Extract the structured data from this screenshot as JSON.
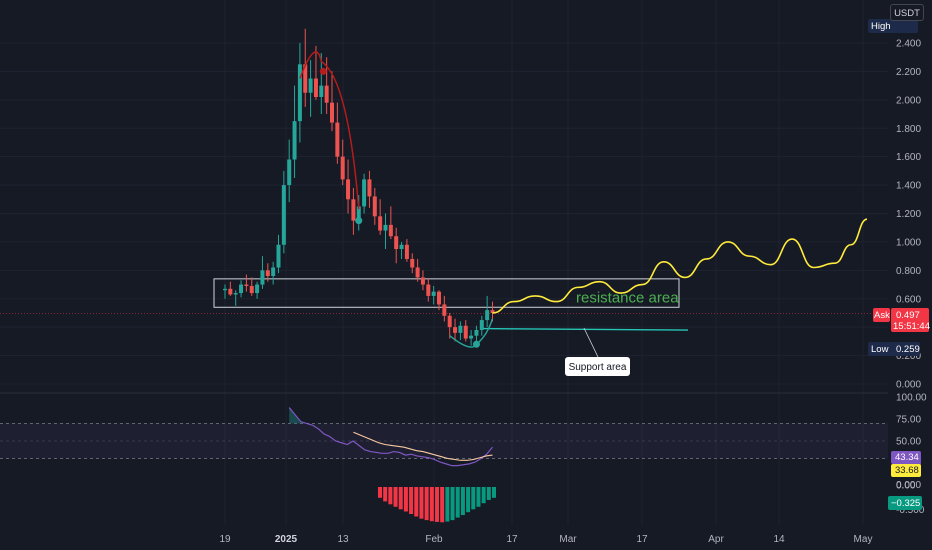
{
  "currency": "USDT",
  "price_badges": {
    "high_label": "High",
    "low_label": "Low",
    "low_value": "0.259",
    "ask_label": "Ask",
    "ask_value": "0.497",
    "countdown": "15:51:44"
  },
  "oscillator_badges": {
    "rsi": "43.34",
    "rsi_ma": "33.68",
    "histogram": "−0.325"
  },
  "annotations": {
    "resistance": "resistance area",
    "support": "Support area"
  },
  "colors": {
    "background": "#161a25",
    "up": "#26a69a",
    "down": "#ef5350",
    "rsi_line": "#7e57c2",
    "rsi_ma": "#f7c9a0",
    "projection": "#ffeb3b",
    "support_line": "#26c6b6",
    "annotation_text": "#4caf50",
    "ask_badge": "#f23645",
    "high_low_badge": "#1e2a4a"
  },
  "chart_data": [
    {
      "type": "candlestick",
      "series": [
        {
          "name": "price",
          "ohlc": [
            [
              0.66,
              0.7,
              0.6,
              0.67
            ],
            [
              0.67,
              0.72,
              0.62,
              0.63
            ],
            [
              0.63,
              0.66,
              0.55,
              0.64
            ],
            [
              0.64,
              0.73,
              0.61,
              0.7
            ],
            [
              0.7,
              0.77,
              0.65,
              0.69
            ],
            [
              0.69,
              0.75,
              0.62,
              0.64
            ],
            [
              0.64,
              0.72,
              0.6,
              0.7
            ],
            [
              0.7,
              0.9,
              0.67,
              0.8
            ],
            [
              0.8,
              0.85,
              0.72,
              0.76
            ],
            [
              0.76,
              0.86,
              0.7,
              0.82
            ],
            [
              0.82,
              1.05,
              0.78,
              0.98
            ],
            [
              0.98,
              1.5,
              0.92,
              1.4
            ],
            [
              1.4,
              1.72,
              1.28,
              1.58
            ],
            [
              1.58,
              2.1,
              1.45,
              1.85
            ],
            [
              1.85,
              2.4,
              1.7,
              2.25
            ],
            [
              2.25,
              2.5,
              1.95,
              2.05
            ],
            [
              2.05,
              2.28,
              1.88,
              2.15
            ],
            [
              2.15,
              2.38,
              2.0,
              2.02
            ],
            [
              2.02,
              2.33,
              1.9,
              2.1
            ],
            [
              2.1,
              2.3,
              1.9,
              1.98
            ],
            [
              1.98,
              2.2,
              1.78,
              1.84
            ],
            [
              1.84,
              1.98,
              1.55,
              1.6
            ],
            [
              1.6,
              1.72,
              1.4,
              1.44
            ],
            [
              1.44,
              1.58,
              1.2,
              1.3
            ],
            [
              1.3,
              1.38,
              1.05,
              1.15
            ],
            [
              1.15,
              1.33,
              1.08,
              1.25
            ],
            [
              1.25,
              1.48,
              1.2,
              1.44
            ],
            [
              1.44,
              1.5,
              1.24,
              1.32
            ],
            [
              1.32,
              1.38,
              1.12,
              1.18
            ],
            [
              1.18,
              1.3,
              1.05,
              1.08
            ],
            [
              1.08,
              1.2,
              0.95,
              1.12
            ],
            [
              1.12,
              1.25,
              1.02,
              1.04
            ],
            [
              1.04,
              1.1,
              0.85,
              0.95
            ],
            [
              0.95,
              1.0,
              0.88,
              0.98
            ],
            [
              0.98,
              1.02,
              0.86,
              0.88
            ],
            [
              0.88,
              0.92,
              0.78,
              0.82
            ],
            [
              0.82,
              0.88,
              0.72,
              0.75
            ],
            [
              0.75,
              0.8,
              0.66,
              0.7
            ],
            [
              0.7,
              0.74,
              0.58,
              0.62
            ],
            [
              0.62,
              0.69,
              0.56,
              0.65
            ],
            [
              0.65,
              0.66,
              0.52,
              0.56
            ],
            [
              0.56,
              0.62,
              0.44,
              0.48
            ],
            [
              0.48,
              0.5,
              0.32,
              0.4
            ],
            [
              0.4,
              0.46,
              0.3,
              0.36
            ],
            [
              0.36,
              0.44,
              0.31,
              0.41
            ],
            [
              0.41,
              0.45,
              0.3,
              0.32
            ],
            [
              0.32,
              0.38,
              0.27,
              0.34
            ],
            [
              0.34,
              0.41,
              0.29,
              0.38
            ],
            [
              0.38,
              0.48,
              0.34,
              0.45
            ],
            [
              0.45,
              0.62,
              0.4,
              0.52
            ],
            [
              0.52,
              0.58,
              0.44,
              0.5
            ]
          ]
        },
        {
          "name": "projection",
          "x": [
            50,
            54,
            58,
            62,
            66,
            70,
            74,
            78,
            82,
            86,
            90,
            94,
            98,
            102,
            106,
            110,
            114,
            117,
            120
          ],
          "values": [
            0.5,
            0.58,
            0.62,
            0.58,
            0.68,
            0.72,
            0.64,
            0.7,
            0.86,
            0.75,
            0.88,
            1.0,
            0.9,
            0.84,
            1.02,
            0.82,
            0.85,
            0.98,
            1.16
          ]
        }
      ],
      "ylim": [
        0,
        2.5
      ],
      "yticks": [
        "2.400",
        "2.200",
        "2.000",
        "1.800",
        "1.600",
        "1.400",
        "1.200",
        "1.000",
        "0.800",
        "0.600",
        "0.400",
        "0.200",
        "0.000"
      ],
      "resistance_zone": [
        0.54,
        0.74
      ],
      "support_level": 0.39
    },
    {
      "type": "line",
      "series": [
        {
          "name": "rsi",
          "values": [
            88,
            80,
            72,
            70,
            68,
            64,
            58,
            55,
            50,
            48,
            46,
            50,
            45,
            40,
            38,
            37,
            36,
            36,
            38,
            37,
            34,
            35,
            33,
            32,
            31,
            29,
            26,
            24,
            22,
            22,
            23,
            24,
            26,
            30,
            35,
            43
          ]
        },
        {
          "name": "rsi_ma",
          "values": [
            60,
            57,
            54,
            51,
            48,
            46,
            45,
            44,
            43,
            41,
            39,
            38,
            36,
            34,
            32,
            30,
            29,
            28,
            28,
            29,
            31,
            33,
            34
          ]
        }
      ],
      "ylim": [
        0,
        100
      ],
      "yticks": [
        "100.00",
        "75.00",
        "50.00",
        "25.00",
        "0.00"
      ]
    },
    {
      "type": "bar",
      "series": [
        {
          "name": "histogram",
          "values": [
            -0.3,
            -0.4,
            -0.48,
            -0.55,
            -0.62,
            -0.68,
            -0.75,
            -0.82,
            -0.88,
            -0.92,
            -0.95,
            -0.97,
            -0.98,
            -0.96,
            -0.92,
            -0.85,
            -0.78,
            -0.7,
            -0.62,
            -0.55,
            -0.45,
            -0.36,
            -0.3
          ]
        }
      ],
      "yticks": [
        "0.000",
        "-0.500"
      ]
    }
  ],
  "x_axis_labels": [
    "19",
    "2025",
    "13",
    "Feb",
    "17",
    "Mar",
    "17",
    "Apr",
    "14",
    "May"
  ]
}
